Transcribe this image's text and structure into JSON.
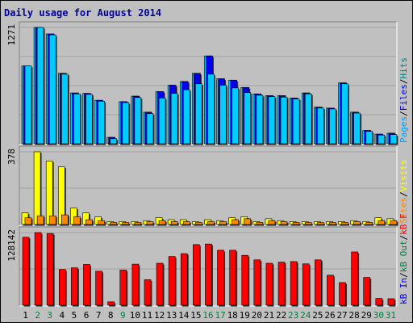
{
  "title": "Daily usage for August 2014",
  "colors": {
    "title": "#0000a0",
    "background": "#c0c0c0",
    "panel_bg": "#c0c0c0",
    "hits": "#00ccff",
    "files": "#0000ee",
    "pages": "#00ccff",
    "visits": "#ffff00",
    "sites": "#ff8800",
    "kbin": "#ff0000",
    "weekday_label": "#000000",
    "weekend_label": "#008040",
    "legend_sep": "#000000",
    "hits_label": "#008080",
    "files_label": "#0000ee",
    "pages_label": "#00a0ff",
    "visits_label": "#ffff00",
    "sites_label": "#ff8800",
    "kbin_label": "#0000ee",
    "kbout_label": "#008040",
    "kbf_label": "#ff0000"
  },
  "chart_data": {
    "type": "bar",
    "x": [
      "1",
      "2",
      "3",
      "4",
      "5",
      "6",
      "7",
      "8",
      "9",
      "10",
      "11",
      "12",
      "13",
      "14",
      "15",
      "16",
      "17",
      "18",
      "19",
      "20",
      "21",
      "22",
      "23",
      "24",
      "25",
      "26",
      "27",
      "28",
      "29",
      "30",
      "31"
    ],
    "weekend_days": [
      "2",
      "3",
      "9",
      "16",
      "17",
      "23",
      "24",
      "30",
      "31"
    ],
    "panels": [
      {
        "name": "hits-files-pages",
        "ymax_label": "1271",
        "ymax": 1271,
        "legend": [
          {
            "text": "Hits",
            "color_key": "hits_label"
          },
          {
            "text": "/",
            "color_key": "legend_sep"
          },
          {
            "text": "Files",
            "color_key": "files_label"
          },
          {
            "text": "/",
            "color_key": "legend_sep"
          },
          {
            "text": "Pages",
            "color_key": "pages_label"
          }
        ],
        "series": [
          {
            "key": "hits",
            "values": [
              850,
              1271,
              1200,
              770,
              555,
              550,
              475,
              70,
              460,
              520,
              345,
              570,
              640,
              680,
              770,
              960,
              710,
              695,
              615,
              545,
              525,
              525,
              500,
              555,
              400,
              390,
              665,
              345,
              145,
              105,
              115
            ]
          },
          {
            "key": "files",
            "values": [
              850,
              1271,
              1200,
              770,
              555,
              550,
              475,
              70,
              460,
              520,
              345,
              570,
              640,
              680,
              770,
              960,
              710,
              695,
              615,
              545,
              525,
              525,
              500,
              555,
              400,
              390,
              665,
              345,
              145,
              105,
              115
            ]
          },
          {
            "key": "pages",
            "values": [
              850,
              1271,
              1190,
              760,
              545,
              540,
              465,
              55,
              450,
              505,
              330,
              500,
              550,
              590,
              655,
              760,
              640,
              610,
              560,
              530,
              515,
              510,
              490,
              545,
              390,
              380,
              655,
              335,
              135,
              95,
              100
            ]
          }
        ]
      },
      {
        "name": "visits-sites",
        "ymax_label": "378",
        "ymax": 378,
        "legend": [
          {
            "text": "Visits",
            "color_key": "visits_label"
          },
          {
            "text": "/",
            "color_key": "legend_sep"
          },
          {
            "text": "Sites",
            "color_key": "sites_label"
          }
        ],
        "series": [
          {
            "key": "visits",
            "values": [
              60,
              378,
              330,
              300,
              85,
              60,
              40,
              15,
              15,
              15,
              20,
              35,
              25,
              25,
              15,
              25,
              20,
              35,
              40,
              15,
              30,
              20,
              15,
              15,
              15,
              15,
              15,
              20,
              15,
              35,
              30
            ]
          },
          {
            "key": "sites",
            "values": [
              35,
              45,
              45,
              50,
              40,
              25,
              20,
              10,
              10,
              10,
              15,
              20,
              15,
              15,
              10,
              15,
              15,
              25,
              30,
              10,
              20,
              15,
              10,
              10,
              10,
              10,
              10,
              15,
              10,
              20,
              20
            ]
          }
        ]
      },
      {
        "name": "kbytes",
        "ymax_label": "128142",
        "ymax": 128142,
        "legend": [
          {
            "text": "kB F",
            "color_key": "kbf_label"
          },
          {
            "text": "/",
            "color_key": "legend_sep"
          },
          {
            "text": "kB Out",
            "color_key": "kbout_label"
          },
          {
            "text": "/",
            "color_key": "legend_sep"
          },
          {
            "text": "kB In",
            "color_key": "kbin_label"
          }
        ],
        "series": [
          {
            "key": "kbin",
            "values": [
              120000,
              128142,
              126500,
              63000,
              66000,
              72000,
              60000,
              6000,
              62000,
              72500,
              45000,
              74000,
              86000,
              91000,
              107000,
              108000,
              97000,
              97000,
              88000,
              80000,
              74000,
              76000,
              77000,
              73000,
              80000,
              53000,
              40000,
              94000,
              49000,
              12000,
              11500
            ]
          }
        ]
      }
    ]
  }
}
